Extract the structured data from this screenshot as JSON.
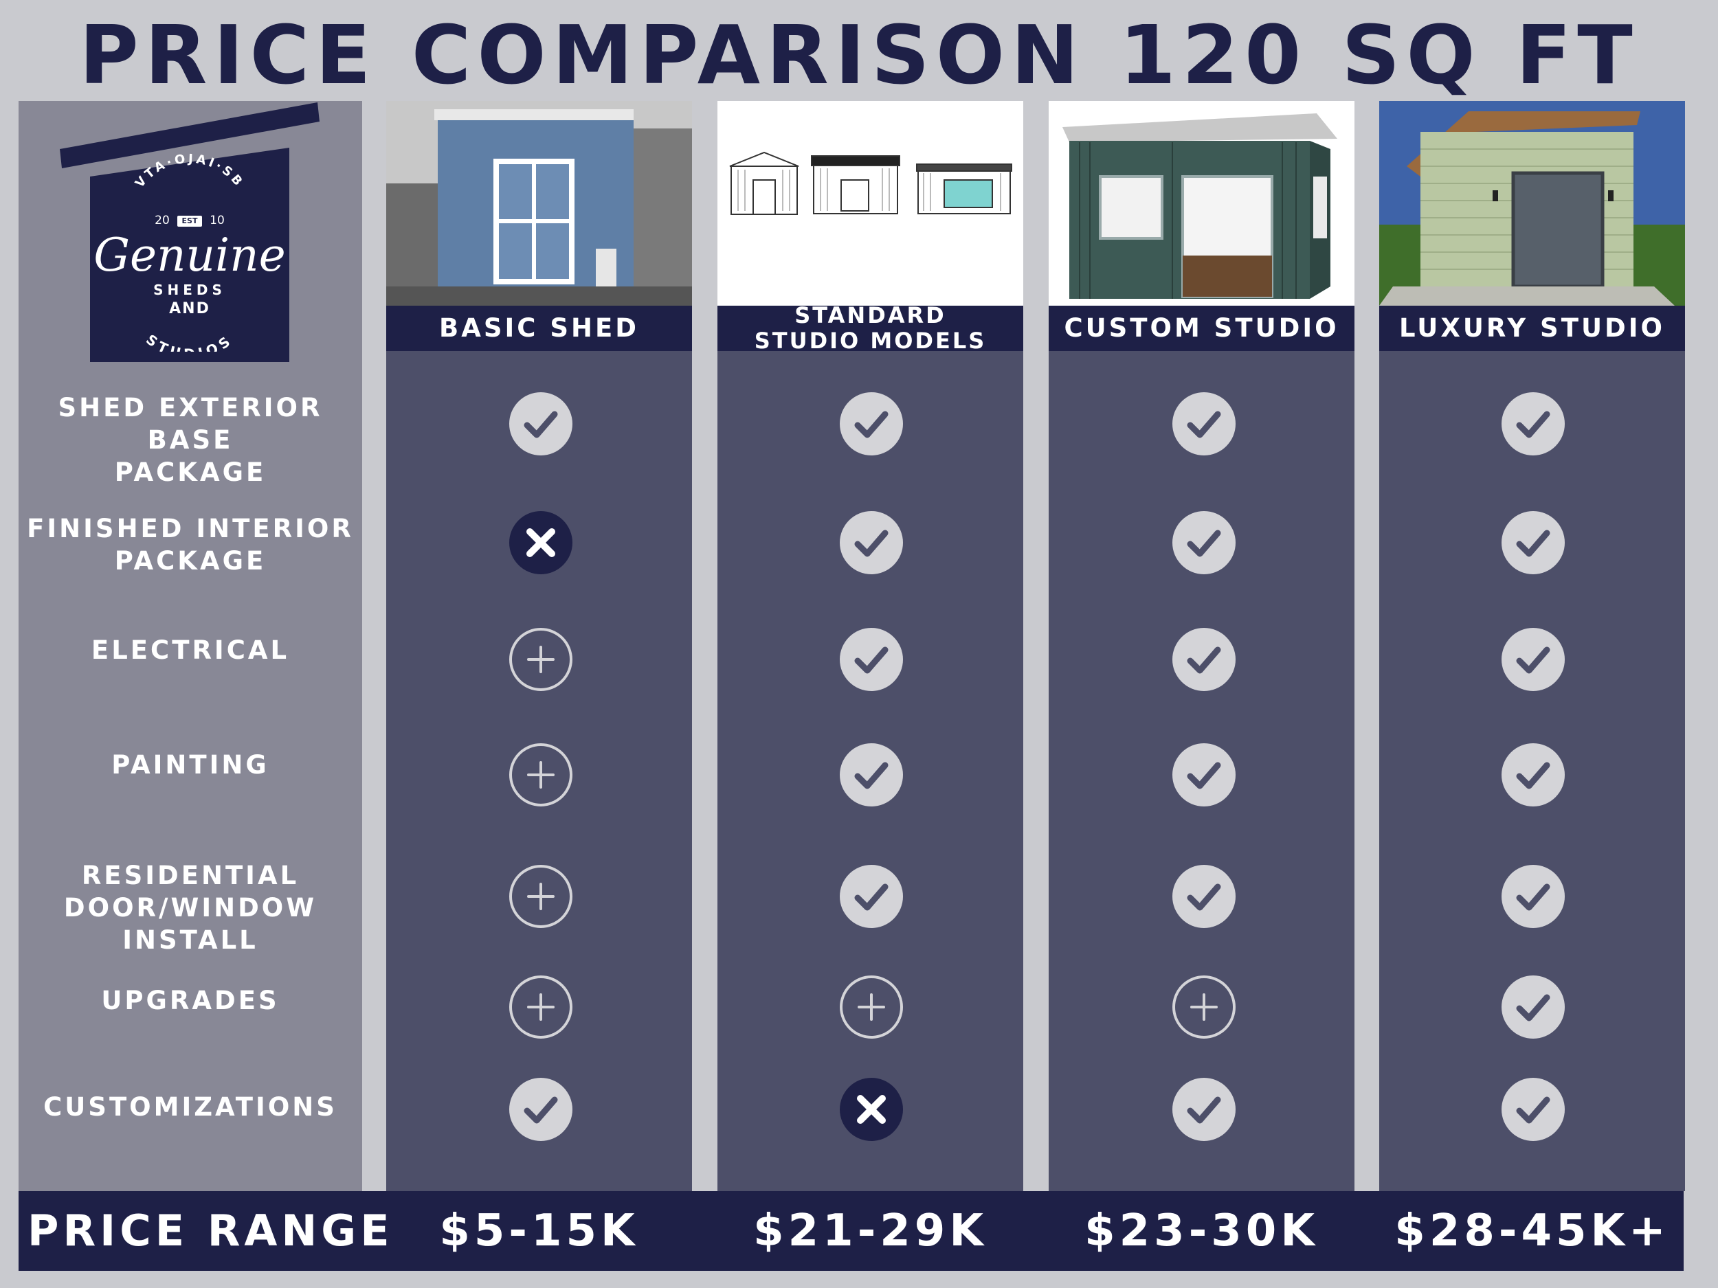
{
  "title": "PRICE COMPARISON 120 SQ FT",
  "logo": {
    "top_arc": "VTA·OJAI·SB",
    "year_left": "20",
    "est": "EST",
    "year_right": "10",
    "brand": "Genuine",
    "line1": "SHEDS",
    "line2": "AND",
    "bottom_arc": "STUDIOS"
  },
  "columns": [
    {
      "name": "BASIC SHED"
    },
    {
      "name": "STANDARD STUDIO MODELS",
      "line1": "STANDARD",
      "line2": "STUDIO MODELS"
    },
    {
      "name": "CUSTOM STUDIO"
    },
    {
      "name": "LUXURY STUDIO"
    }
  ],
  "rows": [
    {
      "label": "SHED EXTERIOR BASE PACKAGE",
      "lines": [
        "SHED EXTERIOR BASE",
        "PACKAGE"
      ]
    },
    {
      "label": "FINISHED INTERIOR PACKAGE",
      "lines": [
        "FINISHED INTERIOR",
        "PACKAGE"
      ]
    },
    {
      "label": "ELECTRICAL",
      "lines": [
        "ELECTRICAL"
      ]
    },
    {
      "label": "PAINTING",
      "lines": [
        "PAINTING"
      ]
    },
    {
      "label": "RESIDENTIAL DOOR/WINDOW INSTALL",
      "lines": [
        "RESIDENTIAL",
        "DOOR/WINDOW",
        "INSTALL"
      ]
    },
    {
      "label": "UPGRADES",
      "lines": [
        "UPGRADES"
      ]
    },
    {
      "label": "CUSTOMIZATIONS",
      "lines": [
        "CUSTOMIZATIONS"
      ]
    }
  ],
  "matrix": [
    [
      "check",
      "check",
      "check",
      "check"
    ],
    [
      "cross",
      "check",
      "check",
      "check"
    ],
    [
      "plus",
      "check",
      "check",
      "check"
    ],
    [
      "plus",
      "check",
      "check",
      "check"
    ],
    [
      "plus",
      "check",
      "check",
      "check"
    ],
    [
      "plus",
      "plus",
      "plus",
      "check"
    ],
    [
      "check",
      "cross",
      "check",
      "check"
    ]
  ],
  "legend_icons": {
    "check": "check-circle-icon",
    "cross": "x-circle-icon",
    "plus": "plus-circle-icon"
  },
  "price_row": {
    "label": "PRICE RANGE",
    "values": [
      "$5-15K",
      "$21-29K",
      "$23-30K",
      "$28-45K+"
    ]
  },
  "colors": {
    "navy": "#1e2047",
    "column_bg": "#4d4f69",
    "label_bg": "#888896",
    "page_bg": "#c9cacf",
    "check_fill": "#d4d4d8",
    "check_mark": "#4d4f69"
  }
}
